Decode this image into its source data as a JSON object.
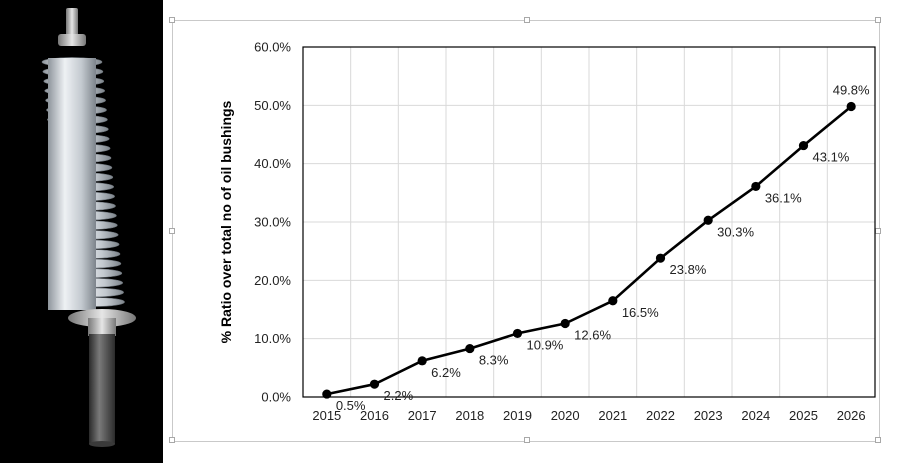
{
  "image": {
    "subject": "bushing-icon",
    "background": "#000000",
    "porcelain_color": "#d9dde2",
    "shaft_color": "#4a4a4a"
  },
  "chart_data": {
    "type": "line",
    "title": "",
    "xlabel": "",
    "ylabel": "% Ratio over total no of oil bushings",
    "categories": [
      "2015",
      "2016",
      "2017",
      "2018",
      "2019",
      "2020",
      "2021",
      "2022",
      "2023",
      "2024",
      "2025",
      "2026"
    ],
    "series": [
      {
        "values": [
          0.5,
          2.2,
          6.2,
          8.3,
          10.9,
          12.6,
          16.5,
          23.8,
          30.3,
          36.1,
          43.1,
          49.8
        ],
        "labels": [
          "0.5%",
          "2.2%",
          "6.2%",
          "8.3%",
          "10.9%",
          "12.6%",
          "16.5%",
          "23.8%",
          "30.3%",
          "36.1%",
          "43.1%",
          "49.8%"
        ],
        "color": "#000000"
      }
    ],
    "ylim": [
      0,
      60
    ],
    "yticks": [
      0,
      10,
      20,
      30,
      40,
      50,
      60
    ],
    "ytick_labels": [
      "0.0%",
      "10.0%",
      "20.0%",
      "30.0%",
      "40.0%",
      "50.0%",
      "60.0%"
    ],
    "grid": true,
    "grid_color": "#d9d9d9",
    "legend": "none"
  }
}
